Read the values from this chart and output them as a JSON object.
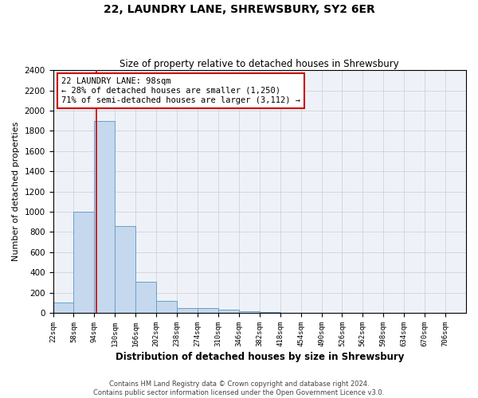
{
  "title": "22, LAUNDRY LANE, SHREWSBURY, SY2 6ER",
  "subtitle": "Size of property relative to detached houses in Shrewsbury",
  "xlabel": "Distribution of detached houses by size in Shrewsbury",
  "ylabel": "Number of detached properties",
  "footnote1": "Contains HM Land Registry data © Crown copyright and database right 2024.",
  "footnote2": "Contains public sector information licensed under the Open Government Licence v3.0.",
  "annotation_line1": "22 LAUNDRY LANE: 98sqm",
  "annotation_line2": "← 28% of detached houses are smaller (1,250)",
  "annotation_line3": "71% of semi-detached houses are larger (3,112) →",
  "property_size": 98,
  "bin_edges": [
    22,
    58,
    94,
    130,
    166,
    202,
    238,
    274,
    310,
    346,
    382,
    418,
    454,
    490,
    526,
    562,
    598,
    634,
    670,
    706,
    742
  ],
  "bar_heights": [
    100,
    1000,
    1900,
    860,
    310,
    120,
    50,
    45,
    30,
    20,
    10,
    0,
    0,
    0,
    0,
    0,
    0,
    0,
    0,
    0
  ],
  "bar_color": "#c5d8ee",
  "bar_edge_color": "#6a9fc8",
  "marker_color": "#cc0000",
  "ylim": [
    0,
    2400
  ],
  "yticks": [
    0,
    200,
    400,
    600,
    800,
    1000,
    1200,
    1400,
    1600,
    1800,
    2000,
    2200,
    2400
  ],
  "grid_color": "#cccccc",
  "background_color": "#eef2f8",
  "title_fontsize": 10,
  "subtitle_fontsize": 8.5,
  "xlabel_fontsize": 8.5,
  "ylabel_fontsize": 8,
  "annotation_box_color": "#cc0000",
  "annotation_fontsize": 7.5
}
